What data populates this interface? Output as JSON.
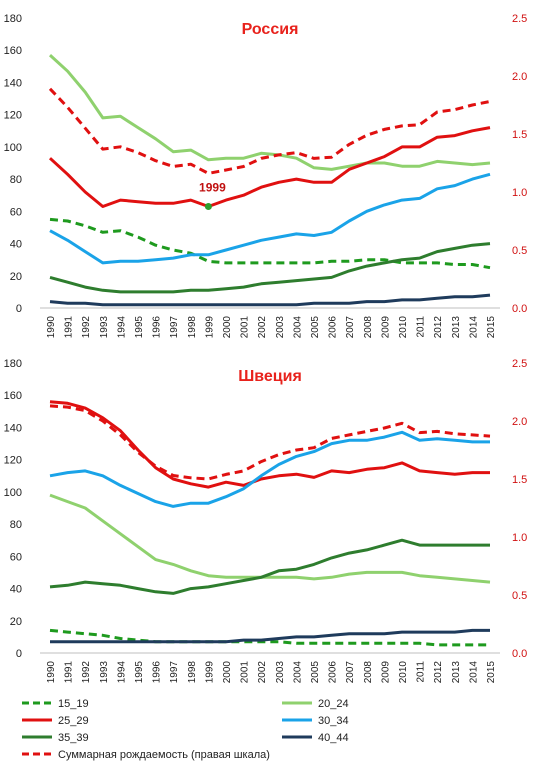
{
  "legend": [
    {
      "key": "15_19",
      "label": "15_19",
      "color": "#1e9a1e",
      "dash": true
    },
    {
      "key": "20_24",
      "label": "20_24",
      "color": "#8fd16e",
      "dash": false
    },
    {
      "key": "25_29",
      "label": "25_29",
      "color": "#e01010",
      "dash": false
    },
    {
      "key": "30_34",
      "label": "30_34",
      "color": "#1aa3e8",
      "dash": false
    },
    {
      "key": "35_39",
      "label": "35_39",
      "color": "#2e7d2e",
      "dash": false
    },
    {
      "key": "40_44",
      "label": "40_44",
      "color": "#1f3b5c",
      "dash": false
    },
    {
      "key": "tfr",
      "label": "Суммарная рождаемость (правая шкала)",
      "color": "#e01010",
      "dash": true
    }
  ],
  "chart_data": [
    {
      "type": "line",
      "title": "Россия",
      "x": [
        "1990",
        "1991",
        "1992",
        "1993",
        "1994",
        "1995",
        "1996",
        "1997",
        "1998",
        "1999",
        "2000",
        "2001",
        "2002",
        "2003",
        "2004",
        "2005",
        "2006",
        "2007",
        "2008",
        "2009",
        "2010",
        "2011",
        "2012",
        "2013",
        "2014",
        "2015"
      ],
      "ylim": [
        0,
        180
      ],
      "y2lim": [
        0,
        2.5
      ],
      "yticks": [
        "0",
        "20",
        "40",
        "60",
        "80",
        "100",
        "120",
        "140",
        "160",
        "180"
      ],
      "y2ticks": [
        "0.0",
        "0.5",
        "1.0",
        "1.5",
        "2.0",
        "2.5"
      ],
      "grid": false,
      "legend_position": "bottom",
      "series": [
        {
          "name": "15_19",
          "axis": "left",
          "values": [
            55,
            54,
            51,
            47,
            48,
            44,
            39,
            36,
            34,
            29,
            28,
            28,
            28,
            28,
            28,
            28,
            29,
            29,
            30,
            30,
            28,
            28,
            28,
            27,
            27,
            25
          ]
        },
        {
          "name": "20_24",
          "axis": "left",
          "values": [
            157,
            147,
            134,
            118,
            119,
            112,
            105,
            97,
            98,
            92,
            93,
            93,
            96,
            95,
            93,
            87,
            86,
            88,
            90,
            90,
            88,
            88,
            91,
            90,
            89,
            90
          ]
        },
        {
          "name": "25_29",
          "axis": "left",
          "values": [
            93,
            83,
            72,
            63,
            67,
            66,
            65,
            65,
            67,
            63,
            67,
            70,
            75,
            78,
            80,
            78,
            78,
            86,
            90,
            94,
            100,
            100,
            106,
            107,
            110,
            112
          ]
        },
        {
          "name": "30_34",
          "axis": "left",
          "values": [
            48,
            42,
            35,
            28,
            29,
            29,
            30,
            31,
            33,
            33,
            36,
            39,
            42,
            44,
            46,
            45,
            47,
            54,
            60,
            64,
            67,
            68,
            74,
            76,
            80,
            83
          ]
        },
        {
          "name": "35_39",
          "axis": "left",
          "values": [
            19,
            16,
            13,
            11,
            10,
            10,
            10,
            10,
            11,
            11,
            12,
            13,
            15,
            16,
            17,
            18,
            19,
            23,
            26,
            28,
            30,
            31,
            35,
            37,
            39,
            40
          ]
        },
        {
          "name": "40_44",
          "axis": "left",
          "values": [
            4,
            3,
            3,
            2,
            2,
            2,
            2,
            2,
            2,
            2,
            2,
            2,
            2,
            2,
            2,
            3,
            3,
            3,
            4,
            4,
            5,
            5,
            6,
            7,
            7,
            8
          ]
        },
        {
          "name": "Суммарная рождаемость (правая шкала)",
          "axis": "right",
          "values": [
            1.89,
            1.73,
            1.55,
            1.37,
            1.39,
            1.34,
            1.27,
            1.22,
            1.24,
            1.16,
            1.19,
            1.22,
            1.29,
            1.32,
            1.34,
            1.29,
            1.3,
            1.41,
            1.49,
            1.54,
            1.57,
            1.58,
            1.69,
            1.71,
            1.75,
            1.78
          ]
        }
      ],
      "annotations": [
        {
          "text": "1999",
          "series": "25_29",
          "x": "1999",
          "y": 63
        }
      ]
    },
    {
      "type": "line",
      "title": "Швеция",
      "x": [
        "1990",
        "1991",
        "1992",
        "1993",
        "1994",
        "1995",
        "1996",
        "1997",
        "1998",
        "1999",
        "2000",
        "2001",
        "2002",
        "2003",
        "2004",
        "2005",
        "2006",
        "2007",
        "2008",
        "2009",
        "2010",
        "2011",
        "2012",
        "2013",
        "2014",
        "2015"
      ],
      "ylim": [
        0,
        180
      ],
      "y2lim": [
        0,
        2.5
      ],
      "yticks": [
        "0",
        "20",
        "40",
        "60",
        "80",
        "100",
        "120",
        "140",
        "160",
        "180"
      ],
      "y2ticks": [
        "0.0",
        "0.5",
        "1.0",
        "1.5",
        "2.0",
        "2.5"
      ],
      "grid": false,
      "legend_position": "bottom",
      "series": [
        {
          "name": "15_19",
          "axis": "left",
          "values": [
            14,
            13,
            12,
            11,
            9,
            8,
            7,
            7,
            7,
            7,
            7,
            7,
            7,
            7,
            6,
            6,
            6,
            6,
            6,
            6,
            6,
            6,
            5,
            5,
            5,
            5
          ]
        },
        {
          "name": "20_24",
          "axis": "left",
          "values": [
            98,
            94,
            90,
            82,
            74,
            66,
            58,
            55,
            51,
            48,
            47,
            47,
            47,
            47,
            47,
            46,
            47,
            49,
            50,
            50,
            50,
            48,
            47,
            46,
            45,
            44
          ]
        },
        {
          "name": "25_29",
          "axis": "left",
          "values": [
            156,
            155,
            152,
            146,
            138,
            126,
            115,
            108,
            105,
            103,
            106,
            104,
            108,
            110,
            111,
            109,
            113,
            112,
            114,
            115,
            118,
            113,
            112,
            111,
            112,
            112
          ]
        },
        {
          "name": "30_34",
          "axis": "left",
          "values": [
            110,
            112,
            113,
            110,
            104,
            99,
            94,
            91,
            93,
            93,
            97,
            102,
            110,
            117,
            122,
            125,
            130,
            132,
            132,
            134,
            137,
            132,
            133,
            132,
            131,
            131
          ]
        },
        {
          "name": "35_39",
          "axis": "left",
          "values": [
            41,
            42,
            44,
            43,
            42,
            40,
            38,
            37,
            40,
            41,
            43,
            45,
            47,
            51,
            52,
            55,
            59,
            62,
            64,
            67,
            70,
            67,
            67,
            67,
            67,
            67
          ]
        },
        {
          "name": "40_44",
          "axis": "left",
          "values": [
            7,
            7,
            7,
            7,
            7,
            7,
            7,
            7,
            7,
            7,
            7,
            8,
            8,
            9,
            10,
            10,
            11,
            12,
            12,
            12,
            13,
            13,
            13,
            13,
            14,
            14
          ]
        },
        {
          "name": "Суммарная рождаемость (правая шкала)",
          "axis": "right",
          "values": [
            2.13,
            2.12,
            2.09,
            2.0,
            1.88,
            1.73,
            1.61,
            1.53,
            1.51,
            1.5,
            1.54,
            1.57,
            1.65,
            1.71,
            1.75,
            1.77,
            1.85,
            1.88,
            1.91,
            1.94,
            1.98,
            1.9,
            1.91,
            1.89,
            1.88,
            1.87
          ]
        }
      ],
      "annotations": []
    }
  ]
}
